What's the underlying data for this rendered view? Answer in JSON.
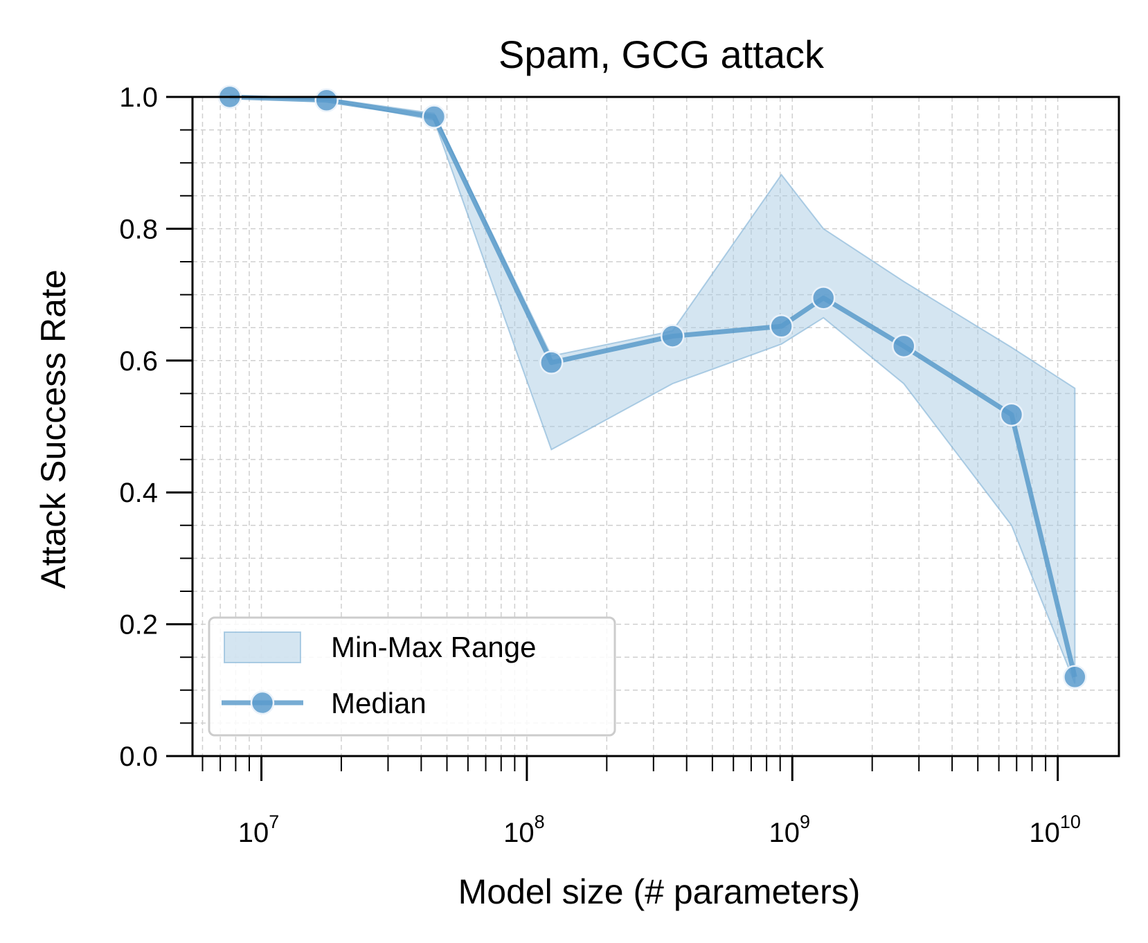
{
  "chart_data": {
    "type": "line",
    "title": "Spam, GCG attack",
    "xlabel": "Model size (# parameters)",
    "ylabel": "Attack Success Rate",
    "xscale": "log",
    "xlim": [
      5500000,
      17000000000
    ],
    "ylim": [
      0.0,
      1.0
    ],
    "grid": true,
    "legend_position": "lower-left",
    "x_ticks": [
      {
        "base": "10",
        "exp": "7",
        "value": 10000000
      },
      {
        "base": "10",
        "exp": "8",
        "value": 100000000
      },
      {
        "base": "10",
        "exp": "9",
        "value": 1000000000
      },
      {
        "base": "10",
        "exp": "10",
        "value": 10000000000
      }
    ],
    "y_ticks": [
      "0.0",
      "0.2",
      "0.4",
      "0.6",
      "0.8",
      "1.0"
    ],
    "x": [
      7600000,
      17600000,
      44700000,
      123700000,
      353800000,
      910000000,
      1310000000,
      2630000000,
      6700000000,
      11600000000
    ],
    "series": [
      {
        "name": "Median",
        "kind": "line-markers",
        "values": [
          1.0,
          0.995,
          0.97,
          0.597,
          0.637,
          0.652,
          0.695,
          0.622,
          0.518,
          0.12
        ]
      },
      {
        "name": "Min-Max Range",
        "kind": "band",
        "min": [
          1.0,
          0.995,
          0.965,
          0.465,
          0.565,
          0.625,
          0.665,
          0.565,
          0.35,
          0.11
        ],
        "max": [
          1.0,
          0.998,
          0.975,
          0.607,
          0.645,
          0.882,
          0.8,
          0.72,
          0.62,
          0.558
        ]
      }
    ],
    "colors": {
      "line": "#4a90c4",
      "marker": "#5b9bcc",
      "band_fill": "#a9cbe4",
      "band_edge": "#7fb0d6",
      "grid": "#cfcfcf",
      "legend_border": "#cccccc"
    }
  }
}
